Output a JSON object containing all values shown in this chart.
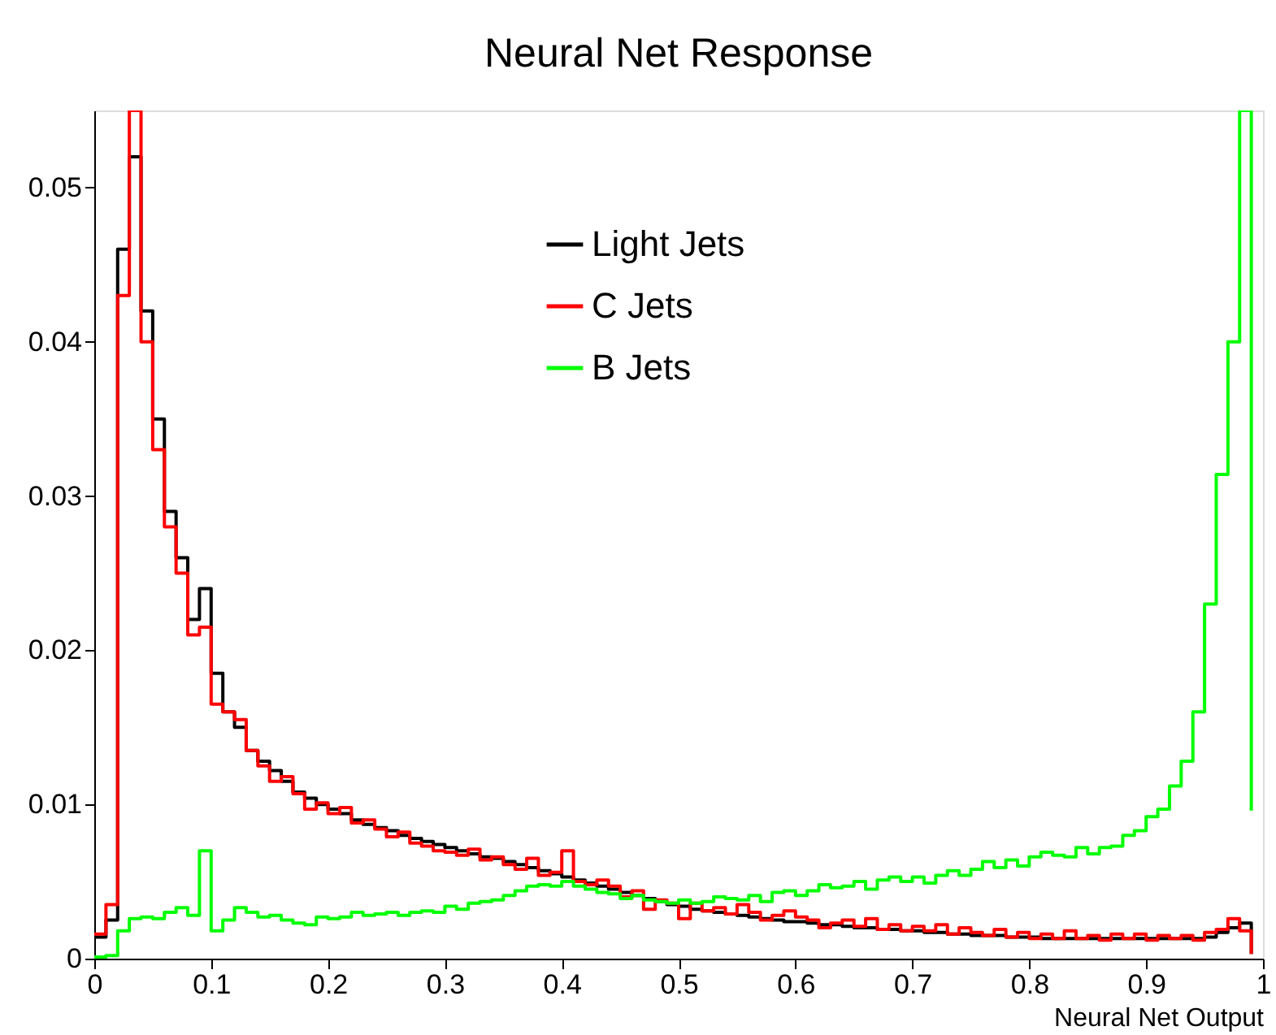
{
  "chart_data": {
    "type": "step",
    "title": "Neural Net Response",
    "xlabel": "Neural Net Output",
    "x": [
      0,
      0.01,
      0.02,
      0.03,
      0.04,
      0.05,
      0.06,
      0.07,
      0.08,
      0.09,
      0.1,
      0.11,
      0.12,
      0.13,
      0.14,
      0.15,
      0.16,
      0.17,
      0.18,
      0.19,
      0.2,
      0.21,
      0.22,
      0.23,
      0.24,
      0.25,
      0.26,
      0.27,
      0.28,
      0.29,
      0.3,
      0.31,
      0.32,
      0.33,
      0.34,
      0.35,
      0.36,
      0.37,
      0.38,
      0.39,
      0.4,
      0.41,
      0.42,
      0.43,
      0.44,
      0.45,
      0.46,
      0.47,
      0.48,
      0.49,
      0.5,
      0.51,
      0.52,
      0.53,
      0.54,
      0.55,
      0.56,
      0.57,
      0.58,
      0.59,
      0.6,
      0.61,
      0.62,
      0.63,
      0.64,
      0.65,
      0.66,
      0.67,
      0.68,
      0.69,
      0.7,
      0.71,
      0.72,
      0.73,
      0.74,
      0.75,
      0.76,
      0.77,
      0.78,
      0.79,
      0.8,
      0.81,
      0.82,
      0.83,
      0.84,
      0.85,
      0.86,
      0.87,
      0.88,
      0.89,
      0.9,
      0.91,
      0.92,
      0.93,
      0.94,
      0.95,
      0.96,
      0.97,
      0.98,
      0.99
    ],
    "series": [
      {
        "name": "Light Jets",
        "color": "#000000",
        "values": [
          0.0014,
          0.0025,
          0.046,
          0.052,
          0.042,
          0.035,
          0.029,
          0.026,
          0.022,
          0.024,
          0.0185,
          0.016,
          0.015,
          0.0135,
          0.0128,
          0.0122,
          0.0115,
          0.0108,
          0.0104,
          0.01,
          0.0097,
          0.0094,
          0.009,
          0.0087,
          0.0085,
          0.0083,
          0.008,
          0.0078,
          0.0076,
          0.0074,
          0.0072,
          0.007,
          0.0068,
          0.0066,
          0.0065,
          0.0063,
          0.0061,
          0.0059,
          0.0057,
          0.0055,
          0.0053,
          0.0051,
          0.0049,
          0.0047,
          0.0045,
          0.0043,
          0.0041,
          0.0039,
          0.0037,
          0.0035,
          0.0034,
          0.0032,
          0.0031,
          0.003,
          0.0029,
          0.0028,
          0.0027,
          0.0026,
          0.0025,
          0.0024,
          0.0024,
          0.0023,
          0.0022,
          0.0022,
          0.0021,
          0.002,
          0.002,
          0.0019,
          0.0019,
          0.0018,
          0.0018,
          0.0017,
          0.0017,
          0.0016,
          0.0016,
          0.0015,
          0.0015,
          0.0015,
          0.0014,
          0.0014,
          0.0014,
          0.0013,
          0.0013,
          0.0013,
          0.0013,
          0.0013,
          0.0013,
          0.0013,
          0.0013,
          0.0013,
          0.0013,
          0.0013,
          0.0013,
          0.0013,
          0.0013,
          0.0014,
          0.0017,
          0.002,
          0.0023,
          0.0003
        ]
      },
      {
        "name": "C Jets",
        "color": "#ff0000",
        "values": [
          0.0016,
          0.0035,
          0.043,
          0.055,
          0.04,
          0.033,
          0.028,
          0.025,
          0.021,
          0.0215,
          0.0165,
          0.016,
          0.0155,
          0.0135,
          0.0125,
          0.0115,
          0.0118,
          0.0107,
          0.0097,
          0.0101,
          0.0094,
          0.0098,
          0.0088,
          0.009,
          0.0084,
          0.0079,
          0.0082,
          0.0075,
          0.0073,
          0.007,
          0.0069,
          0.0067,
          0.0071,
          0.0064,
          0.0066,
          0.0061,
          0.0058,
          0.0065,
          0.0054,
          0.0056,
          0.007,
          0.005,
          0.0048,
          0.0051,
          0.0047,
          0.004,
          0.0044,
          0.0032,
          0.0038,
          0.0036,
          0.0026,
          0.0036,
          0.0031,
          0.0033,
          0.0029,
          0.0035,
          0.003,
          0.0025,
          0.0028,
          0.0031,
          0.0027,
          0.0025,
          0.002,
          0.0023,
          0.0025,
          0.0021,
          0.0026,
          0.0019,
          0.0022,
          0.0018,
          0.0021,
          0.0018,
          0.0022,
          0.0016,
          0.002,
          0.0017,
          0.0015,
          0.0019,
          0.0014,
          0.0017,
          0.0013,
          0.0016,
          0.0013,
          0.0018,
          0.0013,
          0.0015,
          0.0012,
          0.0016,
          0.0013,
          0.0016,
          0.0012,
          0.0015,
          0.0013,
          0.0015,
          0.0012,
          0.0017,
          0.0019,
          0.0026,
          0.0018,
          0.0003
        ]
      },
      {
        "name": "B Jets",
        "color": "#00ff00",
        "values": [
          0.0001,
          0.0002,
          0.0018,
          0.0026,
          0.0027,
          0.0026,
          0.003,
          0.0033,
          0.0028,
          0.007,
          0.0018,
          0.0025,
          0.0033,
          0.003,
          0.0027,
          0.0028,
          0.0025,
          0.0023,
          0.0022,
          0.0027,
          0.0026,
          0.0027,
          0.003,
          0.0028,
          0.0029,
          0.003,
          0.0028,
          0.003,
          0.0031,
          0.003,
          0.0034,
          0.0032,
          0.0036,
          0.0037,
          0.0038,
          0.0041,
          0.0044,
          0.0047,
          0.0048,
          0.0047,
          0.005,
          0.0047,
          0.0045,
          0.0043,
          0.0042,
          0.0039,
          0.0041,
          0.0038,
          0.0037,
          0.0036,
          0.0038,
          0.0036,
          0.0037,
          0.004,
          0.0039,
          0.0038,
          0.0041,
          0.0037,
          0.0043,
          0.0044,
          0.0041,
          0.0044,
          0.0048,
          0.0046,
          0.0047,
          0.005,
          0.0045,
          0.0051,
          0.0053,
          0.005,
          0.0053,
          0.0049,
          0.0054,
          0.0057,
          0.0054,
          0.0058,
          0.0063,
          0.0059,
          0.0064,
          0.006,
          0.0066,
          0.0069,
          0.0067,
          0.0066,
          0.0072,
          0.0068,
          0.0072,
          0.0073,
          0.008,
          0.0083,
          0.0092,
          0.0097,
          0.0112,
          0.0128,
          0.016,
          0.023,
          0.0314,
          0.04,
          0.055,
          0.0096
        ]
      }
    ],
    "xlim": [
      0,
      1
    ],
    "xticks": [
      0,
      {
        "value": 0.1,
        "label": "0.1"
      },
      {
        "value": 0.2,
        "label": "0.2"
      },
      {
        "value": 0.3,
        "label": "0.3"
      },
      {
        "value": 0.4,
        "label": "0.4"
      },
      {
        "value": 0.5,
        "label": "0.5"
      },
      {
        "value": 0.6,
        "label": "0.6"
      },
      {
        "value": 0.7,
        "label": "0.7"
      },
      {
        "value": 0.8,
        "label": "0.8"
      },
      {
        "value": 0.9,
        "label": "0.9"
      },
      1
    ],
    "ylim": [
      0,
      0.055
    ],
    "yticks": [
      0,
      0.01,
      0.02,
      0.03,
      0.04,
      0.05
    ],
    "grid": false,
    "legend": "top"
  }
}
